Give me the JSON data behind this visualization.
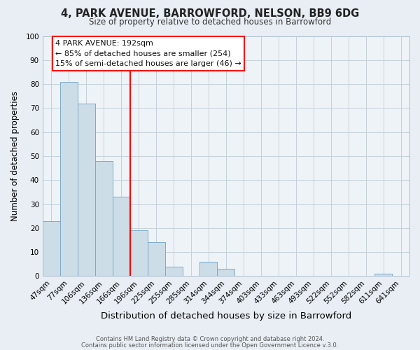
{
  "title": "4, PARK AVENUE, BARROWFORD, NELSON, BB9 6DG",
  "subtitle": "Size of property relative to detached houses in Barrowford",
  "xlabel": "Distribution of detached houses by size in Barrowford",
  "ylabel": "Number of detached properties",
  "bar_labels": [
    "47sqm",
    "77sqm",
    "106sqm",
    "136sqm",
    "166sqm",
    "196sqm",
    "225sqm",
    "255sqm",
    "285sqm",
    "314sqm",
    "344sqm",
    "374sqm",
    "403sqm",
    "433sqm",
    "463sqm",
    "493sqm",
    "522sqm",
    "552sqm",
    "582sqm",
    "611sqm",
    "641sqm"
  ],
  "bar_values": [
    23,
    81,
    72,
    48,
    33,
    19,
    14,
    4,
    0,
    6,
    3,
    0,
    0,
    0,
    0,
    0,
    0,
    0,
    0,
    1,
    0
  ],
  "bar_color": "#ccdde8",
  "bar_edgecolor": "#7aaac8",
  "ylim": [
    0,
    100
  ],
  "yticks": [
    0,
    10,
    20,
    30,
    40,
    50,
    60,
    70,
    80,
    90,
    100
  ],
  "property_label": "4 PARK AVENUE: 192sqm",
  "annotation_line1": "← 85% of detached houses are smaller (254)",
  "annotation_line2": "15% of semi-detached houses are larger (46) →",
  "vline_index": 5,
  "footer1": "Contains HM Land Registry data © Crown copyright and database right 2024.",
  "footer2": "Contains public sector information licensed under the Open Government Licence v.3.0.",
  "bg_color": "#e8eef4",
  "plot_bg_color": "#eef3f8",
  "grid_color": "#c5d0da"
}
